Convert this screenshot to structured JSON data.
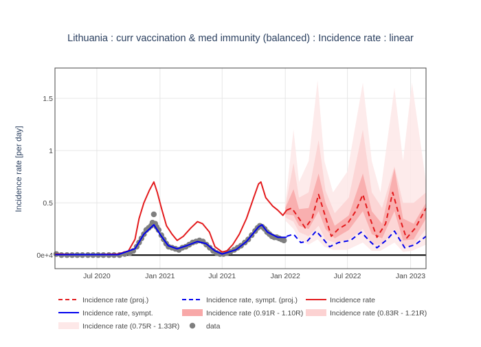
{
  "chart_data": {
    "type": "line",
    "title": "Lithuania : curr vaccination & med immunity (balanced) : Incidence rate : linear",
    "xlabel": "",
    "ylabel": "Incidence rate [per day]",
    "x_axis_type": "date",
    "xlim": [
      "2020-03-01",
      "2023-02-15"
    ],
    "ylim": [
      -0.13,
      1.79
    ],
    "x_ticks": [
      {
        "value": "2020-07-01",
        "label": "Jul 2020"
      },
      {
        "value": "2021-01-01",
        "label": "Jan 2021"
      },
      {
        "value": "2021-07-01",
        "label": "Jul 2021"
      },
      {
        "value": "2022-01-01",
        "label": "Jan 2022"
      },
      {
        "value": "2022-07-01",
        "label": "Jul 2022"
      },
      {
        "value": "2023-01-01",
        "label": "Jan 2023"
      }
    ],
    "y_ticks": [
      {
        "value": 0,
        "label": "0e+4"
      },
      {
        "value": 0.5,
        "label": "0.5"
      },
      {
        "value": 1,
        "label": "1"
      },
      {
        "value": 1.5,
        "label": "1.5"
      }
    ],
    "grid": true,
    "legend": {
      "position": "bottom",
      "entries": [
        {
          "name": "Incidence rate (proj.)",
          "style": "dash",
          "color": "#e31a1c"
        },
        {
          "name": "Incidence rate, sympt. (proj.)",
          "style": "dash",
          "color": "#0000ee"
        },
        {
          "name": "Incidence rate",
          "style": "line",
          "color": "#e31a1c"
        },
        {
          "name": "Incidence rate, sympt.",
          "style": "line",
          "color": "#0000ee"
        },
        {
          "name": "Incidence rate (0.91R - 1.10R)",
          "style": "band",
          "color": "#f8a8a8"
        },
        {
          "name": "Incidence rate (0.83R - 1.21R)",
          "style": "band",
          "color": "#fcd2d2"
        },
        {
          "name": "Incidence rate (0.75R - 1.33R)",
          "style": "band",
          "color": "#fde8e8"
        },
        {
          "name": "data",
          "style": "marker",
          "color": "#7f7f7f"
        }
      ]
    },
    "series": [
      {
        "name": "Incidence rate",
        "color": "#e31a1c",
        "style": "solid",
        "points": [
          [
            "2020-03-01",
            0.01
          ],
          [
            "2020-05-01",
            0.005
          ],
          [
            "2020-07-01",
            0.005
          ],
          [
            "2020-09-01",
            0.01
          ],
          [
            "2020-10-01",
            0.04
          ],
          [
            "2020-10-20",
            0.15
          ],
          [
            "2020-11-01",
            0.35
          ],
          [
            "2020-11-15",
            0.5
          ],
          [
            "2020-12-01",
            0.62
          ],
          [
            "2020-12-14",
            0.7
          ],
          [
            "2020-12-24",
            0.6
          ],
          [
            "2021-01-05",
            0.45
          ],
          [
            "2021-01-20",
            0.28
          ],
          [
            "2021-02-05",
            0.2
          ],
          [
            "2021-02-20",
            0.14
          ],
          [
            "2021-03-10",
            0.18
          ],
          [
            "2021-04-01",
            0.26
          ],
          [
            "2021-04-20",
            0.32
          ],
          [
            "2021-05-05",
            0.3
          ],
          [
            "2021-05-25",
            0.22
          ],
          [
            "2021-06-10",
            0.08
          ],
          [
            "2021-07-01",
            0.03
          ],
          [
            "2021-07-15",
            0.04
          ],
          [
            "2021-08-01",
            0.1
          ],
          [
            "2021-08-20",
            0.2
          ],
          [
            "2021-09-10",
            0.35
          ],
          [
            "2021-10-01",
            0.55
          ],
          [
            "2021-10-15",
            0.68
          ],
          [
            "2021-10-22",
            0.7
          ],
          [
            "2021-11-05",
            0.55
          ],
          [
            "2021-11-25",
            0.47
          ],
          [
            "2021-12-10",
            0.43
          ],
          [
            "2021-12-25",
            0.38
          ],
          [
            "2022-01-05",
            0.43
          ]
        ]
      },
      {
        "name": "Incidence rate, sympt.",
        "color": "#0000ee",
        "style": "solid",
        "points": [
          [
            "2020-03-01",
            0.005
          ],
          [
            "2020-09-01",
            0.005
          ],
          [
            "2020-10-20",
            0.06
          ],
          [
            "2020-11-15",
            0.2
          ],
          [
            "2020-12-14",
            0.29
          ],
          [
            "2021-01-05",
            0.18
          ],
          [
            "2021-01-25",
            0.09
          ],
          [
            "2021-02-20",
            0.06
          ],
          [
            "2021-03-20",
            0.09
          ],
          [
            "2021-04-20",
            0.13
          ],
          [
            "2021-05-15",
            0.11
          ],
          [
            "2021-06-10",
            0.04
          ],
          [
            "2021-07-01",
            0.01
          ],
          [
            "2021-08-10",
            0.05
          ],
          [
            "2021-09-10",
            0.13
          ],
          [
            "2021-10-15",
            0.27
          ],
          [
            "2021-10-25",
            0.29
          ],
          [
            "2021-11-10",
            0.22
          ],
          [
            "2021-12-10",
            0.17
          ],
          [
            "2022-01-05",
            0.17
          ]
        ]
      },
      {
        "name": "Incidence rate (proj.)",
        "color": "#e31a1c",
        "style": "dash",
        "points": [
          [
            "2022-01-05",
            0.43
          ],
          [
            "2022-01-20",
            0.45
          ],
          [
            "2022-02-10",
            0.35
          ],
          [
            "2022-02-28",
            0.26
          ],
          [
            "2022-03-20",
            0.35
          ],
          [
            "2022-04-08",
            0.58
          ],
          [
            "2022-04-25",
            0.4
          ],
          [
            "2022-05-15",
            0.18
          ],
          [
            "2022-06-05",
            0.25
          ],
          [
            "2022-07-01",
            0.3
          ],
          [
            "2022-07-25",
            0.42
          ],
          [
            "2022-08-15",
            0.58
          ],
          [
            "2022-09-05",
            0.35
          ],
          [
            "2022-09-25",
            0.17
          ],
          [
            "2022-10-20",
            0.3
          ],
          [
            "2022-11-10",
            0.6
          ],
          [
            "2022-12-01",
            0.35
          ],
          [
            "2022-12-20",
            0.16
          ],
          [
            "2023-01-15",
            0.26
          ],
          [
            "2023-02-15",
            0.45
          ]
        ]
      },
      {
        "name": "Incidence rate, sympt. (proj.)",
        "color": "#0000ee",
        "style": "dash",
        "points": [
          [
            "2022-01-05",
            0.18
          ],
          [
            "2022-01-25",
            0.2
          ],
          [
            "2022-02-15",
            0.12
          ],
          [
            "2022-03-05",
            0.13
          ],
          [
            "2022-04-01",
            0.23
          ],
          [
            "2022-04-20",
            0.16
          ],
          [
            "2022-05-10",
            0.08
          ],
          [
            "2022-06-05",
            0.12
          ],
          [
            "2022-07-10",
            0.14
          ],
          [
            "2022-08-10",
            0.22
          ],
          [
            "2022-09-05",
            0.13
          ],
          [
            "2022-09-25",
            0.07
          ],
          [
            "2022-10-25",
            0.15
          ],
          [
            "2022-11-15",
            0.23
          ],
          [
            "2022-12-15",
            0.07
          ],
          [
            "2023-01-15",
            0.1
          ],
          [
            "2023-02-15",
            0.18
          ]
        ]
      }
    ],
    "bands": [
      {
        "name": "Incidence rate (0.75R - 1.33R)",
        "color": "#fde8e8",
        "points": [
          [
            "2022-01-01",
            0.33,
            0.5
          ],
          [
            "2022-01-25",
            0.25,
            1.2
          ],
          [
            "2022-02-10",
            0.15,
            0.7
          ],
          [
            "2022-03-10",
            0.1,
            0.9
          ],
          [
            "2022-04-05",
            0.15,
            1.67
          ],
          [
            "2022-04-25",
            0.08,
            0.9
          ],
          [
            "2022-05-20",
            0.05,
            0.6
          ],
          [
            "2022-07-01",
            0.05,
            0.8
          ],
          [
            "2022-08-15",
            0.12,
            1.65
          ],
          [
            "2022-09-10",
            0.04,
            0.9
          ],
          [
            "2022-10-05",
            0.04,
            0.6
          ],
          [
            "2022-11-15",
            0.12,
            1.6
          ],
          [
            "2022-12-10",
            0.03,
            0.9
          ],
          [
            "2023-01-05",
            0.04,
            1.65
          ],
          [
            "2023-02-15",
            0.1,
            0.7
          ]
        ]
      },
      {
        "name": "Incidence rate (0.83R - 1.21R)",
        "color": "#fcd2d2",
        "points": [
          [
            "2022-01-01",
            0.36,
            0.46
          ],
          [
            "2022-01-25",
            0.32,
            0.88
          ],
          [
            "2022-02-10",
            0.22,
            0.55
          ],
          [
            "2022-03-10",
            0.18,
            0.6
          ],
          [
            "2022-04-08",
            0.28,
            1.1
          ],
          [
            "2022-04-28",
            0.15,
            0.62
          ],
          [
            "2022-05-25",
            0.12,
            0.4
          ],
          [
            "2022-07-05",
            0.15,
            0.55
          ],
          [
            "2022-08-15",
            0.25,
            1.2
          ],
          [
            "2022-09-10",
            0.1,
            0.6
          ],
          [
            "2022-10-10",
            0.1,
            0.45
          ],
          [
            "2022-11-15",
            0.25,
            0.85
          ],
          [
            "2022-12-10",
            0.08,
            0.5
          ],
          [
            "2023-01-10",
            0.1,
            0.5
          ],
          [
            "2023-02-15",
            0.25,
            0.6
          ]
        ]
      },
      {
        "name": "Incidence rate (0.91R - 1.10R)",
        "color": "#f8a8a8",
        "points": [
          [
            "2022-01-01",
            0.39,
            0.45
          ],
          [
            "2022-01-25",
            0.38,
            0.63
          ],
          [
            "2022-02-10",
            0.28,
            0.44
          ],
          [
            "2022-03-10",
            0.25,
            0.45
          ],
          [
            "2022-04-08",
            0.42,
            0.78
          ],
          [
            "2022-04-28",
            0.25,
            0.5
          ],
          [
            "2022-05-25",
            0.16,
            0.28
          ],
          [
            "2022-07-05",
            0.24,
            0.38
          ],
          [
            "2022-08-15",
            0.42,
            0.78
          ],
          [
            "2022-09-10",
            0.2,
            0.42
          ],
          [
            "2022-10-10",
            0.16,
            0.3
          ],
          [
            "2022-11-15",
            0.42,
            0.83
          ],
          [
            "2022-12-10",
            0.14,
            0.35
          ],
          [
            "2023-01-10",
            0.15,
            0.3
          ],
          [
            "2023-02-15",
            0.35,
            0.5
          ]
        ]
      }
    ],
    "reference_line": {
      "y": 0,
      "color": "#000000"
    },
    "scatter": {
      "name": "data",
      "color": "#7f7f7f",
      "points": [
        [
          "2020-03-05",
          0.01
        ],
        [
          "2020-03-20",
          0.0
        ],
        [
          "2020-04-05",
          0.0
        ],
        [
          "2020-04-20",
          0.0
        ],
        [
          "2020-05-05",
          0.0
        ],
        [
          "2020-05-20",
          0.0
        ],
        [
          "2020-06-05",
          0.0
        ],
        [
          "2020-06-20",
          0.0
        ],
        [
          "2020-07-05",
          0.0
        ],
        [
          "2020-07-20",
          0.0
        ],
        [
          "2020-08-05",
          0.0
        ],
        [
          "2020-08-20",
          0.0
        ],
        [
          "2020-09-05",
          0.0
        ],
        [
          "2020-09-20",
          0.01
        ],
        [
          "2020-10-05",
          0.02
        ],
        [
          "2020-10-15",
          0.04
        ],
        [
          "2020-10-25",
          0.08
        ],
        [
          "2020-11-01",
          0.12
        ],
        [
          "2020-11-08",
          0.16
        ],
        [
          "2020-11-15",
          0.2
        ],
        [
          "2020-11-22",
          0.24
        ],
        [
          "2020-11-29",
          0.26
        ],
        [
          "2020-12-06",
          0.28
        ],
        [
          "2020-12-10",
          0.31
        ],
        [
          "2020-12-14",
          0.39
        ],
        [
          "2020-12-18",
          0.3
        ],
        [
          "2020-12-22",
          0.27
        ],
        [
          "2020-12-28",
          0.24
        ],
        [
          "2021-01-05",
          0.19
        ],
        [
          "2021-01-12",
          0.15
        ],
        [
          "2021-01-19",
          0.11
        ],
        [
          "2021-01-26",
          0.08
        ],
        [
          "2021-02-05",
          0.07
        ],
        [
          "2021-02-15",
          0.06
        ],
        [
          "2021-02-25",
          0.05
        ],
        [
          "2021-03-07",
          0.07
        ],
        [
          "2021-03-17",
          0.08
        ],
        [
          "2021-03-27",
          0.1
        ],
        [
          "2021-04-06",
          0.12
        ],
        [
          "2021-04-16",
          0.13
        ],
        [
          "2021-04-26",
          0.14
        ],
        [
          "2021-05-06",
          0.13
        ],
        [
          "2021-05-16",
          0.1
        ],
        [
          "2021-05-26",
          0.07
        ],
        [
          "2021-06-05",
          0.04
        ],
        [
          "2021-06-15",
          0.02
        ],
        [
          "2021-06-25",
          0.01
        ],
        [
          "2021-07-05",
          0.01
        ],
        [
          "2021-07-15",
          0.02
        ],
        [
          "2021-07-25",
          0.03
        ],
        [
          "2021-08-05",
          0.05
        ],
        [
          "2021-08-15",
          0.07
        ],
        [
          "2021-08-25",
          0.09
        ],
        [
          "2021-09-05",
          0.12
        ],
        [
          "2021-09-15",
          0.15
        ],
        [
          "2021-09-25",
          0.19
        ],
        [
          "2021-10-05",
          0.23
        ],
        [
          "2021-10-12",
          0.26
        ],
        [
          "2021-10-19",
          0.28
        ],
        [
          "2021-10-26",
          0.27
        ],
        [
          "2021-11-02",
          0.25
        ],
        [
          "2021-11-09",
          0.22
        ],
        [
          "2021-11-16",
          0.2
        ],
        [
          "2021-11-23",
          0.18
        ],
        [
          "2021-11-30",
          0.17
        ],
        [
          "2021-12-07",
          0.17
        ],
        [
          "2021-12-14",
          0.16
        ],
        [
          "2021-12-21",
          0.15
        ],
        [
          "2021-12-28",
          0.14
        ]
      ]
    }
  }
}
